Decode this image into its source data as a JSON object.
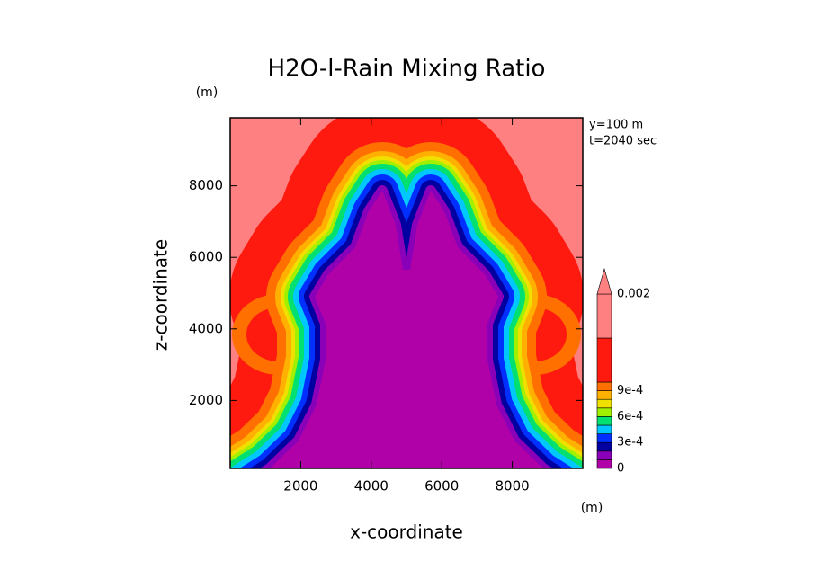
{
  "chart_data": {
    "type": "contour",
    "title": "H2O-l-Rain Mixing Ratio",
    "x_label": "x-coordinate",
    "y_label": "z-coordinate",
    "x_unit": "(m)",
    "y_unit": "(m)",
    "annotations": [
      "y=100 m",
      "t=2040 sec"
    ],
    "xlim": [
      0,
      10000
    ],
    "ylim": [
      100,
      9900
    ],
    "xticks": [
      2000,
      4000,
      6000,
      8000
    ],
    "yticks": [
      2000,
      4000,
      6000,
      8000
    ],
    "levels": [
      0,
      0.0001,
      0.0002,
      0.0003,
      0.0004,
      0.0005,
      0.0006,
      0.0007,
      0.0008,
      0.0009,
      0.001,
      0.0015,
      0.002
    ],
    "colorbar_ticks": [
      0,
      {
        "value": 0.0003,
        "label": "3e-4"
      },
      {
        "value": 0.0006,
        "label": "6e-4"
      },
      {
        "value": 0.0009,
        "label": "9e-4"
      },
      0.002
    ],
    "level_colors": [
      "#b000a8",
      "#8a00b8",
      "#0000a0",
      "#0030ff",
      "#00c8ff",
      "#00e070",
      "#a0f000",
      "#f0e000",
      "#ffb000",
      "#ff7000",
      "#ff1a10",
      "#ff8080"
    ]
  }
}
